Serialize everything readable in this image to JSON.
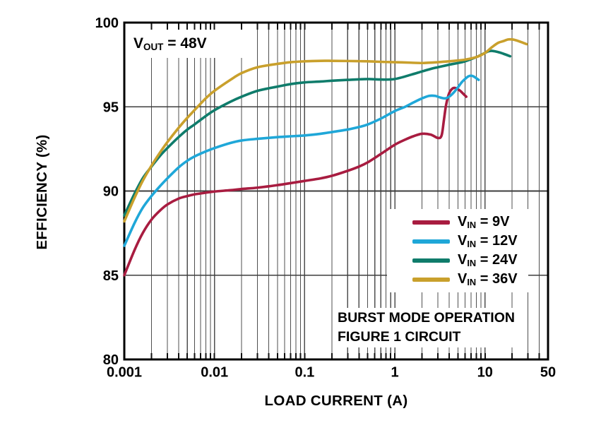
{
  "figure": {
    "background": "#ffffff",
    "annotation": {
      "pre": "V",
      "sub": "OUT",
      "post": " = 48V"
    },
    "note_lines": [
      "BURST MODE OPERATION",
      "FIGURE 1 CIRCUIT"
    ],
    "colors": {
      "grid": "#4f4f4f",
      "tick": "#111111",
      "border": "#000000",
      "text": "#000000",
      "vin_9v": "#a81c40",
      "vin_12v": "#1fa7d8",
      "vin_24v": "#0f7c6b",
      "vin_36v": "#c9a02c"
    }
  },
  "chart_data": {
    "type": "line",
    "title": "",
    "xlabel": "LOAD CURRENT (A)",
    "ylabel": "EFFICIENCY (%)",
    "x_scale": "log",
    "xlim": [
      0.001,
      50
    ],
    "ylim": [
      80,
      100
    ],
    "grid": "log minor verticals (2-9 per decade) + horizontals at 85/90/95",
    "legend_position": "lower right",
    "x_ticks": [
      {
        "value": 0.001,
        "label": "0.001"
      },
      {
        "value": 0.01,
        "label": "0.01"
      },
      {
        "value": 0.1,
        "label": "0.1"
      },
      {
        "value": 1,
        "label": "1"
      },
      {
        "value": 10,
        "label": "10"
      },
      {
        "value": 50,
        "label": "50"
      }
    ],
    "y_ticks": [
      {
        "value": 100,
        "label": "100"
      },
      {
        "value": 95,
        "label": "95"
      },
      {
        "value": 90,
        "label": "90"
      },
      {
        "value": 85,
        "label": "85"
      },
      {
        "value": 80,
        "label": "80"
      }
    ],
    "y_gridlines": [
      85,
      90,
      95
    ],
    "series": [
      {
        "id": "vin-9v",
        "label": {
          "pre": "V",
          "sub": "IN",
          "post": " = 9V"
        },
        "color": "#a81c40",
        "points": [
          [
            0.001,
            85.0
          ],
          [
            0.0013,
            86.5
          ],
          [
            0.0016,
            87.5
          ],
          [
            0.002,
            88.3
          ],
          [
            0.0025,
            88.85
          ],
          [
            0.003,
            89.2
          ],
          [
            0.004,
            89.55
          ],
          [
            0.005,
            89.7
          ],
          [
            0.006,
            89.8
          ],
          [
            0.008,
            89.9
          ],
          [
            0.01,
            89.97
          ],
          [
            0.015,
            90.05
          ],
          [
            0.02,
            90.12
          ],
          [
            0.03,
            90.2
          ],
          [
            0.05,
            90.35
          ],
          [
            0.07,
            90.47
          ],
          [
            0.1,
            90.6
          ],
          [
            0.15,
            90.75
          ],
          [
            0.2,
            90.9
          ],
          [
            0.3,
            91.2
          ],
          [
            0.4,
            91.45
          ],
          [
            0.5,
            91.7
          ],
          [
            0.7,
            92.2
          ],
          [
            1,
            92.75
          ],
          [
            1.3,
            93.05
          ],
          [
            1.6,
            93.25
          ],
          [
            2,
            93.4
          ],
          [
            2.5,
            93.35
          ],
          [
            3,
            93.15
          ],
          [
            3.3,
            93.3
          ],
          [
            3.5,
            94.2
          ],
          [
            3.7,
            95.1
          ],
          [
            4,
            95.8
          ],
          [
            4.4,
            96.1
          ],
          [
            4.8,
            96.1
          ],
          [
            5.3,
            95.95
          ],
          [
            5.8,
            95.75
          ],
          [
            6.2,
            95.6
          ]
        ]
      },
      {
        "id": "vin-12v",
        "label": {
          "pre": "V",
          "sub": "IN",
          "post": " = 12V"
        },
        "color": "#1fa7d8",
        "points": [
          [
            0.001,
            86.75
          ],
          [
            0.0013,
            88.1
          ],
          [
            0.0016,
            89.0
          ],
          [
            0.002,
            89.7
          ],
          [
            0.0025,
            90.3
          ],
          [
            0.003,
            90.75
          ],
          [
            0.004,
            91.4
          ],
          [
            0.005,
            91.8
          ],
          [
            0.006,
            92.05
          ],
          [
            0.008,
            92.35
          ],
          [
            0.01,
            92.55
          ],
          [
            0.015,
            92.85
          ],
          [
            0.02,
            93.0
          ],
          [
            0.03,
            93.1
          ],
          [
            0.05,
            93.2
          ],
          [
            0.07,
            93.25
          ],
          [
            0.1,
            93.3
          ],
          [
            0.15,
            93.4
          ],
          [
            0.2,
            93.5
          ],
          [
            0.3,
            93.65
          ],
          [
            0.4,
            93.8
          ],
          [
            0.5,
            93.95
          ],
          [
            0.7,
            94.3
          ],
          [
            1,
            94.75
          ],
          [
            1.3,
            95.0
          ],
          [
            1.6,
            95.25
          ],
          [
            2,
            95.5
          ],
          [
            2.4,
            95.65
          ],
          [
            2.8,
            95.65
          ],
          [
            3.2,
            95.55
          ],
          [
            3.6,
            95.5
          ],
          [
            4,
            95.6
          ],
          [
            4.5,
            95.85
          ],
          [
            5,
            96.15
          ],
          [
            5.5,
            96.45
          ],
          [
            6,
            96.65
          ],
          [
            6.5,
            96.8
          ],
          [
            7,
            96.85
          ],
          [
            7.5,
            96.8
          ],
          [
            8,
            96.7
          ],
          [
            8.5,
            96.6
          ]
        ]
      },
      {
        "id": "vin-24v",
        "label": {
          "pre": "V",
          "sub": "IN",
          "post": " = 24V"
        },
        "color": "#0f7c6b",
        "points": [
          [
            0.001,
            88.55
          ],
          [
            0.0013,
            89.85
          ],
          [
            0.0016,
            90.75
          ],
          [
            0.002,
            91.45
          ],
          [
            0.0025,
            92.1
          ],
          [
            0.003,
            92.55
          ],
          [
            0.004,
            93.2
          ],
          [
            0.005,
            93.65
          ],
          [
            0.006,
            93.95
          ],
          [
            0.008,
            94.45
          ],
          [
            0.01,
            94.8
          ],
          [
            0.015,
            95.3
          ],
          [
            0.02,
            95.6
          ],
          [
            0.03,
            95.95
          ],
          [
            0.05,
            96.2
          ],
          [
            0.07,
            96.35
          ],
          [
            0.1,
            96.45
          ],
          [
            0.15,
            96.5
          ],
          [
            0.2,
            96.55
          ],
          [
            0.3,
            96.6
          ],
          [
            0.5,
            96.65
          ],
          [
            0.7,
            96.62
          ],
          [
            1,
            96.65
          ],
          [
            1.5,
            96.9
          ],
          [
            2,
            97.1
          ],
          [
            2.5,
            97.25
          ],
          [
            3,
            97.35
          ],
          [
            4,
            97.5
          ],
          [
            5,
            97.6
          ],
          [
            6,
            97.7
          ],
          [
            8,
            97.95
          ],
          [
            10,
            98.2
          ],
          [
            11,
            98.3
          ],
          [
            12,
            98.32
          ],
          [
            14,
            98.25
          ],
          [
            16,
            98.15
          ],
          [
            19,
            98.0
          ]
        ]
      },
      {
        "id": "vin-36v",
        "label": {
          "pre": "V",
          "sub": "IN",
          "post": " = 36V"
        },
        "color": "#c9a02c",
        "points": [
          [
            0.001,
            88.2
          ],
          [
            0.0013,
            89.6
          ],
          [
            0.0016,
            90.6
          ],
          [
            0.002,
            91.5
          ],
          [
            0.0025,
            92.3
          ],
          [
            0.003,
            92.9
          ],
          [
            0.004,
            93.75
          ],
          [
            0.005,
            94.35
          ],
          [
            0.006,
            94.8
          ],
          [
            0.008,
            95.5
          ],
          [
            0.01,
            95.95
          ],
          [
            0.015,
            96.6
          ],
          [
            0.02,
            97.0
          ],
          [
            0.03,
            97.35
          ],
          [
            0.05,
            97.55
          ],
          [
            0.07,
            97.65
          ],
          [
            0.1,
            97.7
          ],
          [
            0.15,
            97.73
          ],
          [
            0.2,
            97.73
          ],
          [
            0.3,
            97.72
          ],
          [
            0.5,
            97.7
          ],
          [
            0.7,
            97.67
          ],
          [
            1,
            97.65
          ],
          [
            1.5,
            97.62
          ],
          [
            2,
            97.6
          ],
          [
            3,
            97.65
          ],
          [
            4,
            97.7
          ],
          [
            5,
            97.75
          ],
          [
            6,
            97.8
          ],
          [
            8,
            97.95
          ],
          [
            10,
            98.2
          ],
          [
            12,
            98.55
          ],
          [
            14,
            98.8
          ],
          [
            16,
            98.9
          ],
          [
            18,
            99.0
          ],
          [
            20,
            99.0
          ],
          [
            22,
            98.95
          ],
          [
            25,
            98.85
          ],
          [
            29,
            98.72
          ]
        ]
      }
    ]
  }
}
